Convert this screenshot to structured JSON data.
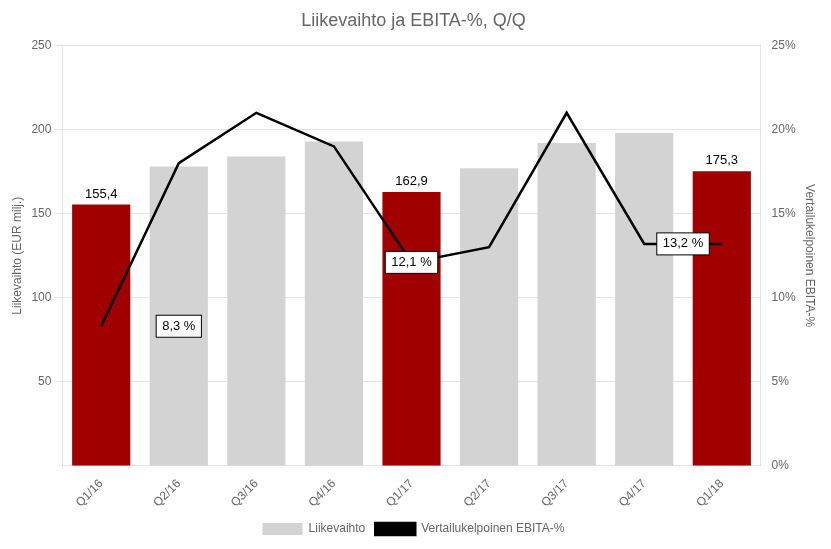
{
  "chart_data": {
    "type": "bar",
    "title": "Liikevaihto ja EBITA-%, Q/Q",
    "categories": [
      "Q1/16",
      "Q2/16",
      "Q3/16",
      "Q4/16",
      "Q1/17",
      "Q2/17",
      "Q3/17",
      "Q4/17",
      "Q1/18"
    ],
    "series": [
      {
        "name": "Liikevaihto",
        "type": "bar",
        "color": "#d3d3d3",
        "colors": [
          "#a00000",
          "#d3d3d3",
          "#d3d3d3",
          "#d3d3d3",
          "#a00000",
          "#d3d3d3",
          "#d3d3d3",
          "#d3d3d3",
          "#a00000"
        ],
        "values": [
          155.4,
          178.0,
          184.0,
          193.0,
          162.9,
          177.0,
          192.0,
          198.0,
          175.3
        ],
        "value_labels": [
          "155,4",
          null,
          null,
          null,
          "162,9",
          null,
          null,
          null,
          "175,3"
        ]
      },
      {
        "name": "Vertailukelpoinen EBITA-%",
        "type": "line",
        "color": "#000000",
        "axis": "y2",
        "values": [
          8.3,
          18.0,
          21.0,
          19.0,
          12.1,
          13.0,
          21.0,
          13.2,
          13.2
        ]
      }
    ],
    "annotations": [
      {
        "text": "8,3 %",
        "x": 1.0,
        "y": 8.3,
        "axis": "y2"
      },
      {
        "text": "12,1 %",
        "x": 4.0,
        "y": 12.1,
        "axis": "y2"
      },
      {
        "text": "13,2 %",
        "x": 7.5,
        "y": 13.2,
        "axis": "y2"
      }
    ],
    "ylabel": "Liikevaihto (EUR milj.)",
    "y2label": "Vertailukelpoinen EBITA-%",
    "ylim": [
      0,
      250
    ],
    "yticks": [
      50,
      100,
      150,
      200,
      250
    ],
    "y2lim": [
      0,
      25
    ],
    "y2ticks": [
      {
        "value": 0,
        "label": "0%"
      },
      {
        "value": 5,
        "label": "5%"
      },
      {
        "value": 10,
        "label": "10%"
      },
      {
        "value": 15,
        "label": "15%"
      },
      {
        "value": 20,
        "label": "20%"
      },
      {
        "value": 25,
        "label": "25%"
      }
    ],
    "grid": true,
    "legend": "bottom"
  }
}
